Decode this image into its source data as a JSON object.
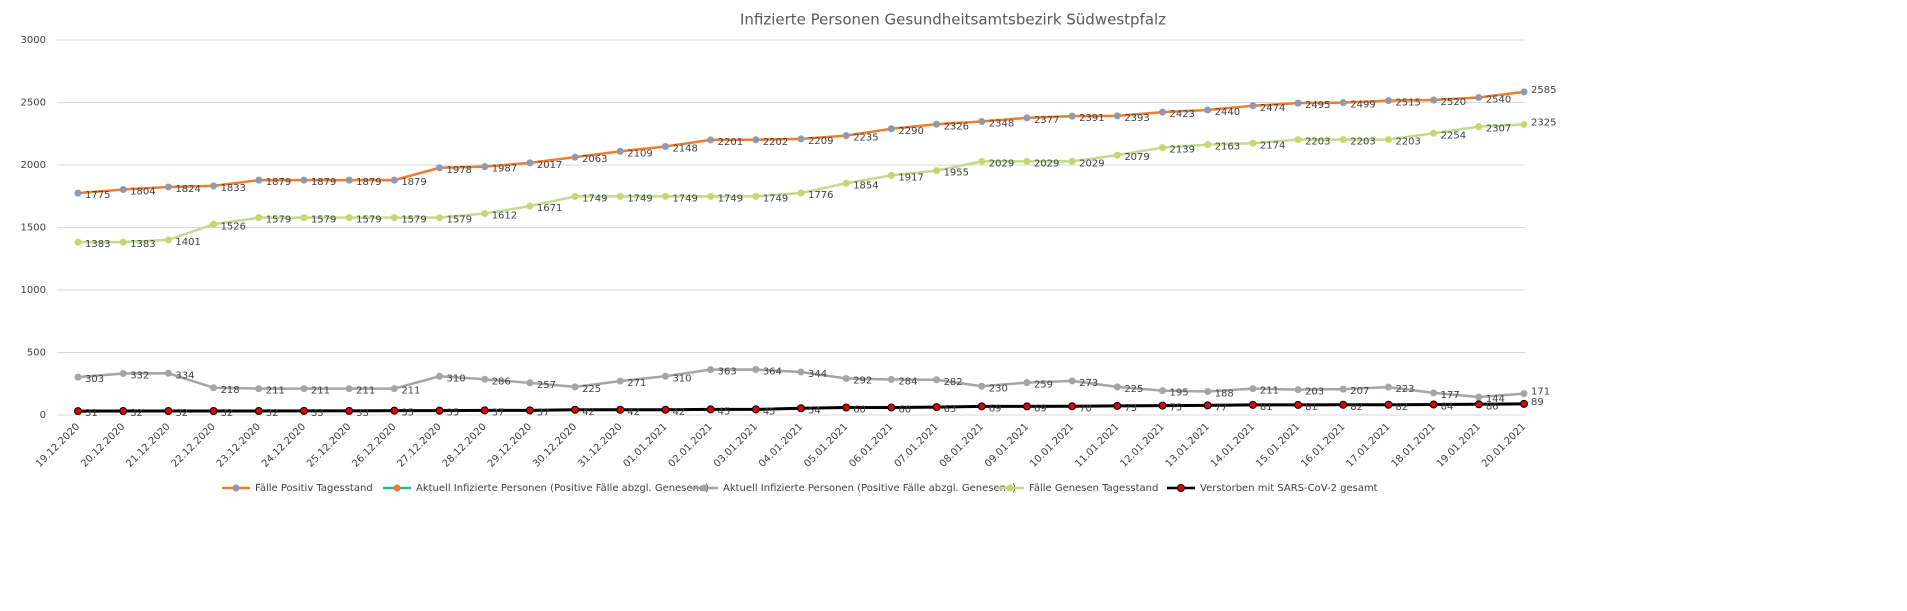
{
  "chart_data": {
    "type": "line",
    "title": "Infizierte Personen Gesundheitsamtsbezirk Südwestpfalz",
    "categories": [
      "19.12.2020",
      "20.12.2020",
      "21.12.2020",
      "22.12.2020",
      "23.12.2020",
      "24.12.2020",
      "25.12.2020",
      "26.12.2020",
      "27.12.2020",
      "28.12.2020",
      "29.12.2020",
      "30.12.2020",
      "31.12.2020",
      "01.01.2021",
      "02.01.2021",
      "03.01.2021",
      "04.01.2021",
      "05.01.2021",
      "06.01.2021",
      "07.01.2021",
      "08.01.2021",
      "09.01.2021",
      "10.01.2021",
      "11.01.2021",
      "12.01.2021",
      "13.01.2021",
      "14.01.2021",
      "15.01.2021",
      "16.01.2021",
      "17.01.2021",
      "18.01.2021",
      "19.01.2021",
      "20.01.2021"
    ],
    "series": [
      {
        "name": "Fälle Positiv Tagesstand",
        "color": "#ed7d31",
        "marker_color": "#8e9ab0",
        "values": [
          1775,
          1804,
          1824,
          1833,
          1879,
          1879,
          1879,
          1879,
          1978,
          1987,
          2017,
          2063,
          2109,
          2148,
          2201,
          2202,
          2209,
          2235,
          2290,
          2326,
          2348,
          2377,
          2391,
          2393,
          2423,
          2440,
          2474,
          2495,
          2499,
          2515,
          2520,
          2540,
          2585
        ]
      },
      {
        "name": "Aktuell Infizierte Personen (Positive Fälle abzgl. Genesene)",
        "color": "#1fbf8f",
        "marker_color": "#ed7d31",
        "values": [
          null,
          null,
          null,
          null,
          null,
          null,
          null,
          null,
          null,
          null,
          null,
          null,
          null,
          null,
          null,
          null,
          null,
          null,
          null,
          null,
          null,
          null,
          null,
          null,
          null,
          null,
          null,
          null,
          null,
          null,
          null,
          null,
          null
        ]
      },
      {
        "name": "Aktuell Infizierte Personen (Positive Fälle abzgl. Genesene)",
        "color": "#a5a5a5",
        "marker_color": "#a5a5a5",
        "values": [
          303,
          332,
          334,
          218,
          211,
          211,
          211,
          211,
          310,
          286,
          257,
          225,
          271,
          310,
          363,
          364,
          344,
          292,
          284,
          282,
          230,
          259,
          273,
          225,
          195,
          188,
          211,
          203,
          207,
          223,
          177,
          144,
          171
        ]
      },
      {
        "name": "Fälle Genesen Tagesstand",
        "color": "#c5da8f",
        "marker_color": "#c9d66b",
        "values": [
          1383,
          1383,
          1401,
          1526,
          1579,
          1579,
          1579,
          1579,
          1579,
          1612,
          1671,
          1749,
          1749,
          1749,
          1749,
          1749,
          1776,
          1854,
          1917,
          1955,
          2029,
          2029,
          2029,
          2079,
          2139,
          2163,
          2174,
          2203,
          2203,
          2203,
          2254,
          2307,
          2325
        ]
      },
      {
        "name": "Verstorben mit SARS-CoV-2 gesamt",
        "color": "#000000",
        "marker_color": "#e00000",
        "values": [
          31,
          32,
          32,
          32,
          32,
          33,
          33,
          35,
          35,
          37,
          37,
          42,
          42,
          42,
          45,
          45,
          54,
          60,
          60,
          63,
          69,
          69,
          70,
          73,
          75,
          77,
          81,
          81,
          82,
          82,
          84,
          86,
          89
        ]
      }
    ],
    "ylim": [
      0,
      3000
    ],
    "yticks": [
      0,
      500,
      1000,
      1500,
      2000,
      2500,
      3000
    ],
    "grid": true,
    "legend": "bottom"
  }
}
